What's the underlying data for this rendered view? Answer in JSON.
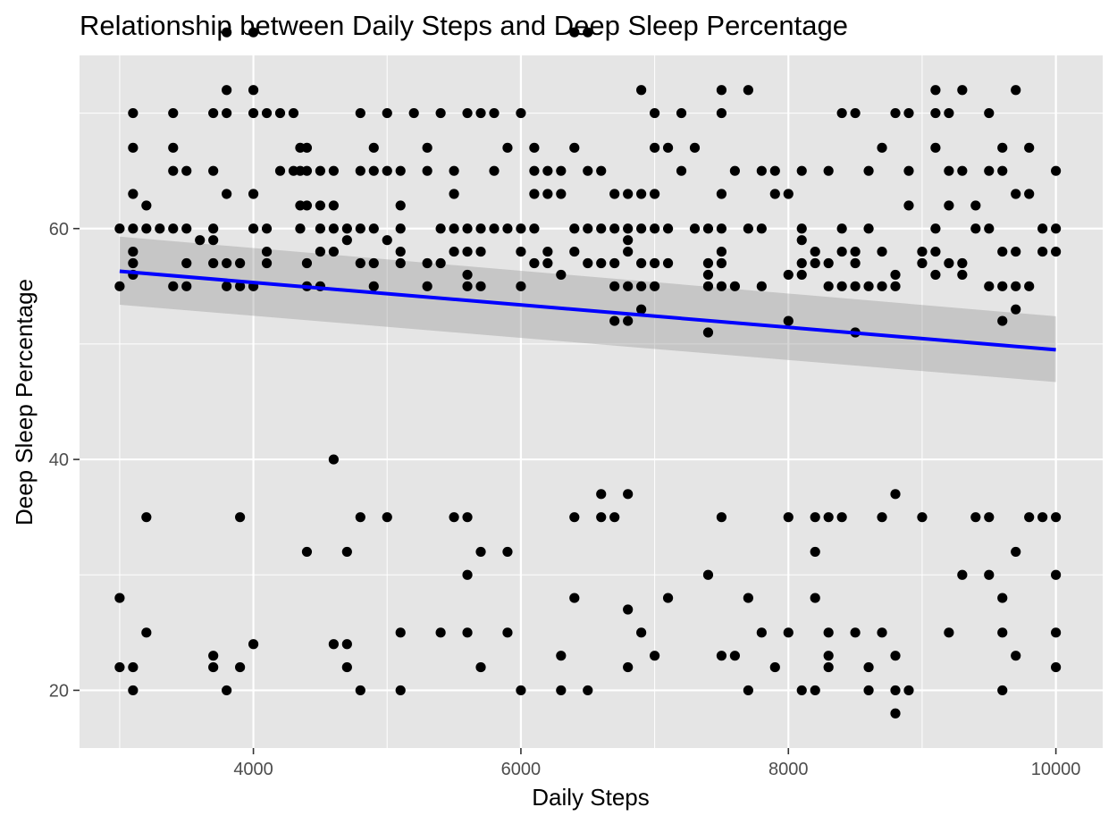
{
  "chart_data": {
    "type": "scatter",
    "title": "Relationship between Daily Steps and Deep Sleep Percentage",
    "xlabel": "Daily Steps",
    "ylabel": "Deep Sleep Percentage",
    "xlim": [
      2700,
      10350
    ],
    "ylim": [
      15,
      75
    ],
    "xticks": [
      4000,
      6000,
      8000,
      10000
    ],
    "xtick_labels": [
      "4000",
      "6000",
      "8000",
      "10000"
    ],
    "yticks": [
      20,
      40,
      60
    ],
    "ytick_labels": [
      "20",
      "40",
      "60"
    ],
    "grid": true,
    "legend": "none",
    "colors": {
      "panel": "#e5e5e5",
      "grid": "#ffffff",
      "point": "#000000",
      "trend": "#0000ff",
      "ribbon": "#999999"
    },
    "trend_line": {
      "method": "linear fit with confidence band",
      "x": [
        3000,
        10000
      ],
      "y": [
        56.3,
        49.5
      ],
      "ci_lower": [
        53.4,
        46.7
      ],
      "ci_upper": [
        59.3,
        52.4
      ]
    },
    "points": [
      [
        3000,
        55
      ],
      [
        3000,
        60
      ],
      [
        3000,
        28
      ],
      [
        3000,
        22
      ],
      [
        3100,
        70
      ],
      [
        3100,
        67
      ],
      [
        3100,
        63
      ],
      [
        3100,
        60
      ],
      [
        3100,
        58
      ],
      [
        3100,
        57
      ],
      [
        3100,
        56
      ],
      [
        3100,
        22
      ],
      [
        3100,
        20
      ],
      [
        3200,
        62
      ],
      [
        3200,
        60
      ],
      [
        3200,
        35
      ],
      [
        3200,
        25
      ],
      [
        3300,
        60
      ],
      [
        3400,
        70
      ],
      [
        3400,
        67
      ],
      [
        3400,
        65
      ],
      [
        3400,
        60
      ],
      [
        3400,
        55
      ],
      [
        3500,
        65
      ],
      [
        3500,
        60
      ],
      [
        3500,
        57
      ],
      [
        3500,
        55
      ],
      [
        3600,
        59
      ],
      [
        3700,
        70
      ],
      [
        3700,
        65
      ],
      [
        3700,
        60
      ],
      [
        3700,
        59
      ],
      [
        3700,
        57
      ],
      [
        3700,
        23
      ],
      [
        3700,
        22
      ],
      [
        3800,
        77
      ],
      [
        3800,
        72
      ],
      [
        3800,
        70
      ],
      [
        3800,
        63
      ],
      [
        3800,
        57
      ],
      [
        3800,
        55
      ],
      [
        3800,
        20
      ],
      [
        3900,
        57
      ],
      [
        3900,
        55
      ],
      [
        3900,
        35
      ],
      [
        3900,
        22
      ],
      [
        4000,
        77
      ],
      [
        4000,
        72
      ],
      [
        4000,
        70
      ],
      [
        4000,
        63
      ],
      [
        4000,
        60
      ],
      [
        4000,
        55
      ],
      [
        4000,
        24
      ],
      [
        4100,
        70
      ],
      [
        4100,
        60
      ],
      [
        4100,
        58
      ],
      [
        4100,
        57
      ],
      [
        4200,
        70
      ],
      [
        4200,
        65
      ],
      [
        4300,
        70
      ],
      [
        4300,
        65
      ],
      [
        4350,
        67
      ],
      [
        4350,
        62
      ],
      [
        4350,
        60
      ],
      [
        4350,
        65
      ],
      [
        4400,
        67
      ],
      [
        4400,
        65
      ],
      [
        4400,
        62
      ],
      [
        4400,
        57
      ],
      [
        4400,
        55
      ],
      [
        4400,
        32
      ],
      [
        4500,
        65
      ],
      [
        4500,
        62
      ],
      [
        4500,
        60
      ],
      [
        4500,
        58
      ],
      [
        4500,
        55
      ],
      [
        4600,
        65
      ],
      [
        4600,
        62
      ],
      [
        4600,
        60
      ],
      [
        4600,
        58
      ],
      [
        4600,
        40
      ],
      [
        4600,
        24
      ],
      [
        4700,
        60
      ],
      [
        4700,
        59
      ],
      [
        4700,
        32
      ],
      [
        4700,
        24
      ],
      [
        4700,
        22
      ],
      [
        4800,
        70
      ],
      [
        4800,
        65
      ],
      [
        4800,
        60
      ],
      [
        4800,
        57
      ],
      [
        4800,
        35
      ],
      [
        4800,
        20
      ],
      [
        4900,
        67
      ],
      [
        4900,
        65
      ],
      [
        4900,
        60
      ],
      [
        4900,
        57
      ],
      [
        4900,
        55
      ],
      [
        5000,
        70
      ],
      [
        5000,
        65
      ],
      [
        5000,
        59
      ],
      [
        5000,
        35
      ],
      [
        5100,
        65
      ],
      [
        5100,
        62
      ],
      [
        5100,
        60
      ],
      [
        5100,
        58
      ],
      [
        5100,
        57
      ],
      [
        5100,
        25
      ],
      [
        5100,
        20
      ],
      [
        5200,
        70
      ],
      [
        5300,
        67
      ],
      [
        5300,
        65
      ],
      [
        5300,
        57
      ],
      [
        5300,
        55
      ],
      [
        5400,
        70
      ],
      [
        5400,
        60
      ],
      [
        5400,
        57
      ],
      [
        5400,
        25
      ],
      [
        5500,
        65
      ],
      [
        5500,
        63
      ],
      [
        5500,
        60
      ],
      [
        5500,
        58
      ],
      [
        5500,
        35
      ],
      [
        5600,
        70
      ],
      [
        5600,
        60
      ],
      [
        5600,
        58
      ],
      [
        5600,
        56
      ],
      [
        5600,
        55
      ],
      [
        5600,
        35
      ],
      [
        5600,
        30
      ],
      [
        5600,
        25
      ],
      [
        5700,
        70
      ],
      [
        5700,
        60
      ],
      [
        5700,
        58
      ],
      [
        5700,
        55
      ],
      [
        5700,
        32
      ],
      [
        5700,
        22
      ],
      [
        5800,
        70
      ],
      [
        5800,
        65
      ],
      [
        5800,
        60
      ],
      [
        5900,
        67
      ],
      [
        5900,
        60
      ],
      [
        5900,
        32
      ],
      [
        5900,
        25
      ],
      [
        6000,
        70
      ],
      [
        6000,
        60
      ],
      [
        6000,
        58
      ],
      [
        6000,
        55
      ],
      [
        6000,
        20
      ],
      [
        6100,
        67
      ],
      [
        6100,
        65
      ],
      [
        6100,
        63
      ],
      [
        6100,
        60
      ],
      [
        6100,
        57
      ],
      [
        6200,
        65
      ],
      [
        6200,
        63
      ],
      [
        6200,
        58
      ],
      [
        6200,
        57
      ],
      [
        6300,
        65
      ],
      [
        6300,
        63
      ],
      [
        6300,
        56
      ],
      [
        6300,
        23
      ],
      [
        6300,
        20
      ],
      [
        6400,
        77
      ],
      [
        6400,
        67
      ],
      [
        6400,
        60
      ],
      [
        6400,
        58
      ],
      [
        6400,
        35
      ],
      [
        6400,
        28
      ],
      [
        6500,
        77
      ],
      [
        6500,
        65
      ],
      [
        6500,
        60
      ],
      [
        6500,
        57
      ],
      [
        6500,
        20
      ],
      [
        6600,
        65
      ],
      [
        6600,
        60
      ],
      [
        6600,
        57
      ],
      [
        6600,
        37
      ],
      [
        6600,
        35
      ],
      [
        6700,
        63
      ],
      [
        6700,
        60
      ],
      [
        6700,
        57
      ],
      [
        6700,
        55
      ],
      [
        6700,
        52
      ],
      [
        6700,
        35
      ],
      [
        6800,
        63
      ],
      [
        6800,
        60
      ],
      [
        6800,
        59
      ],
      [
        6800,
        58
      ],
      [
        6800,
        55
      ],
      [
        6800,
        52
      ],
      [
        6800,
        37
      ],
      [
        6800,
        27
      ],
      [
        6800,
        22
      ],
      [
        6900,
        72
      ],
      [
        6900,
        63
      ],
      [
        6900,
        60
      ],
      [
        6900,
        57
      ],
      [
        6900,
        55
      ],
      [
        6900,
        53
      ],
      [
        6900,
        25
      ],
      [
        7000,
        70
      ],
      [
        7000,
        67
      ],
      [
        7000,
        63
      ],
      [
        7000,
        60
      ],
      [
        7000,
        57
      ],
      [
        7000,
        55
      ],
      [
        7000,
        23
      ],
      [
        7100,
        67
      ],
      [
        7100,
        60
      ],
      [
        7100,
        57
      ],
      [
        7100,
        28
      ],
      [
        7200,
        70
      ],
      [
        7200,
        65
      ],
      [
        7300,
        67
      ],
      [
        7300,
        60
      ],
      [
        7400,
        60
      ],
      [
        7400,
        57
      ],
      [
        7400,
        56
      ],
      [
        7400,
        55
      ],
      [
        7400,
        51
      ],
      [
        7400,
        30
      ],
      [
        7500,
        72
      ],
      [
        7500,
        70
      ],
      [
        7500,
        63
      ],
      [
        7500,
        60
      ],
      [
        7500,
        58
      ],
      [
        7500,
        57
      ],
      [
        7500,
        55
      ],
      [
        7500,
        35
      ],
      [
        7500,
        23
      ],
      [
        7600,
        65
      ],
      [
        7600,
        55
      ],
      [
        7600,
        23
      ],
      [
        7700,
        72
      ],
      [
        7700,
        60
      ],
      [
        7700,
        28
      ],
      [
        7700,
        20
      ],
      [
        7800,
        65
      ],
      [
        7800,
        60
      ],
      [
        7800,
        55
      ],
      [
        7800,
        25
      ],
      [
        7900,
        65
      ],
      [
        7900,
        63
      ],
      [
        7900,
        22
      ],
      [
        8000,
        63
      ],
      [
        8000,
        56
      ],
      [
        8000,
        52
      ],
      [
        8000,
        35
      ],
      [
        8000,
        25
      ],
      [
        8100,
        65
      ],
      [
        8100,
        60
      ],
      [
        8100,
        59
      ],
      [
        8100,
        57
      ],
      [
        8100,
        56
      ],
      [
        8100,
        20
      ],
      [
        8200,
        58
      ],
      [
        8200,
        57
      ],
      [
        8200,
        35
      ],
      [
        8200,
        32
      ],
      [
        8200,
        28
      ],
      [
        8200,
        20
      ],
      [
        8300,
        65
      ],
      [
        8300,
        57
      ],
      [
        8300,
        55
      ],
      [
        8300,
        35
      ],
      [
        8300,
        25
      ],
      [
        8300,
        23
      ],
      [
        8300,
        22
      ],
      [
        8400,
        70
      ],
      [
        8400,
        60
      ],
      [
        8400,
        58
      ],
      [
        8400,
        55
      ],
      [
        8400,
        35
      ],
      [
        8500,
        70
      ],
      [
        8500,
        58
      ],
      [
        8500,
        57
      ],
      [
        8500,
        55
      ],
      [
        8500,
        51
      ],
      [
        8500,
        25
      ],
      [
        8600,
        65
      ],
      [
        8600,
        60
      ],
      [
        8600,
        55
      ],
      [
        8600,
        22
      ],
      [
        8600,
        20
      ],
      [
        8700,
        67
      ],
      [
        8700,
        58
      ],
      [
        8700,
        55
      ],
      [
        8700,
        35
      ],
      [
        8700,
        25
      ],
      [
        8800,
        70
      ],
      [
        8800,
        56
      ],
      [
        8800,
        55
      ],
      [
        8800,
        37
      ],
      [
        8800,
        23
      ],
      [
        8800,
        20
      ],
      [
        8800,
        18
      ],
      [
        8900,
        70
      ],
      [
        8900,
        65
      ],
      [
        8900,
        62
      ],
      [
        8900,
        20
      ],
      [
        9000,
        58
      ],
      [
        9000,
        57
      ],
      [
        9000,
        35
      ],
      [
        9100,
        72
      ],
      [
        9100,
        70
      ],
      [
        9100,
        67
      ],
      [
        9100,
        60
      ],
      [
        9100,
        58
      ],
      [
        9100,
        56
      ],
      [
        9200,
        70
      ],
      [
        9200,
        65
      ],
      [
        9200,
        62
      ],
      [
        9200,
        57
      ],
      [
        9200,
        25
      ],
      [
        9300,
        72
      ],
      [
        9300,
        65
      ],
      [
        9300,
        57
      ],
      [
        9300,
        56
      ],
      [
        9300,
        30
      ],
      [
        9400,
        62
      ],
      [
        9400,
        60
      ],
      [
        9400,
        35
      ],
      [
        9500,
        70
      ],
      [
        9500,
        65
      ],
      [
        9500,
        60
      ],
      [
        9500,
        55
      ],
      [
        9500,
        35
      ],
      [
        9500,
        30
      ],
      [
        9600,
        67
      ],
      [
        9600,
        65
      ],
      [
        9600,
        58
      ],
      [
        9600,
        55
      ],
      [
        9600,
        52
      ],
      [
        9600,
        28
      ],
      [
        9600,
        25
      ],
      [
        9600,
        20
      ],
      [
        9700,
        72
      ],
      [
        9700,
        63
      ],
      [
        9700,
        58
      ],
      [
        9700,
        55
      ],
      [
        9700,
        53
      ],
      [
        9700,
        32
      ],
      [
        9700,
        23
      ],
      [
        9800,
        67
      ],
      [
        9800,
        63
      ],
      [
        9800,
        55
      ],
      [
        9800,
        35
      ],
      [
        9900,
        60
      ],
      [
        9900,
        58
      ],
      [
        9900,
        35
      ],
      [
        10000,
        65
      ],
      [
        10000,
        60
      ],
      [
        10000,
        58
      ],
      [
        10000,
        35
      ],
      [
        10000,
        30
      ],
      [
        10000,
        25
      ],
      [
        10000,
        22
      ]
    ]
  }
}
